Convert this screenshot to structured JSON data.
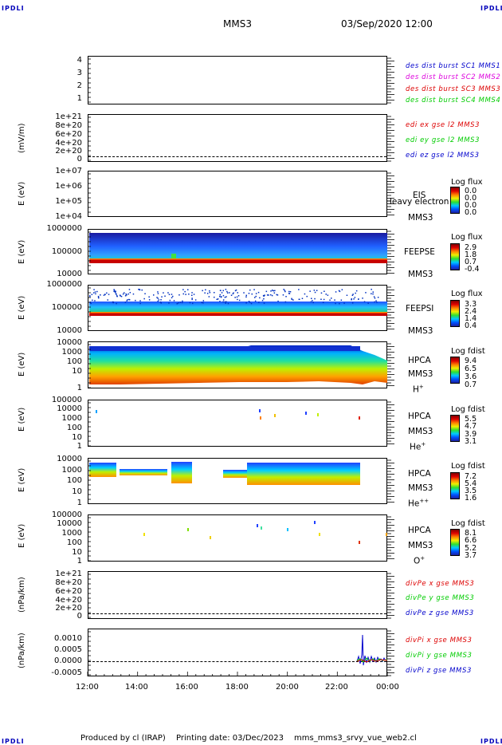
{
  "corners": {
    "tl": "IPDLI",
    "tr": "IPDLI",
    "bl": "IPDLI",
    "br": "IPDLI"
  },
  "header": {
    "spacecraft": "MMS3",
    "datetime": "03/Sep/2020 12:00"
  },
  "panels": {
    "p1": {
      "ticks": [
        "4",
        "3",
        "2",
        "1"
      ],
      "legend": [
        "des dist burst SC1 MMS1",
        "des dist burst SC2 MMS2",
        "des dist burst SC3 MMS3",
        "des dist burst SC4 MMS4"
      ]
    },
    "p2": {
      "ylabel": "(mV/m)",
      "ticks": [
        "1e+21",
        "8e+20",
        "6e+20",
        "4e+20",
        "2e+20",
        "0"
      ],
      "legend": [
        "edi ex gse l2 MMS3",
        "edi ey gse l2 MMS3",
        "edi ez gse l2 MMS3"
      ]
    },
    "p3": {
      "ylabel": "E (eV)",
      "ticks": [
        "1e+07",
        "1e+06",
        "1e+05",
        "1e+04"
      ],
      "inst": "EIS",
      "inst2": "MMS3",
      "overlay": "Heavy electron to",
      "cbar_title": "Log flux",
      "cbar": [
        "0.0",
        "0.0",
        "0.0",
        "0.0"
      ]
    },
    "p4": {
      "ylabel": "E (eV)",
      "ticks": [
        "1000000",
        "100000",
        "10000"
      ],
      "inst": "FEEPSE",
      "inst2": "MMS3",
      "cbar_title": "Log flux",
      "cbar": [
        "2.9",
        "1.8",
        "0.7",
        "-0.4"
      ]
    },
    "p5": {
      "ylabel": "E (eV)",
      "ticks": [
        "1000000",
        "100000",
        "10000"
      ],
      "inst": "FEEPSI",
      "inst2": "MMS3",
      "cbar_title": "Log flux",
      "cbar": [
        "3.3",
        "2.4",
        "1.4",
        "0.4"
      ]
    },
    "p6": {
      "ylabel": "E (eV)",
      "ticks": [
        "10000",
        "1000",
        "100",
        "10",
        "1"
      ],
      "inst": "HPCA",
      "inst2": "MMS3",
      "species": "H",
      "sup": "+",
      "cbar_title": "Log fdist",
      "cbar": [
        "9.4",
        "6.5",
        "3.6",
        "0.7"
      ]
    },
    "p7": {
      "ylabel": "E (eV)",
      "ticks": [
        "100000",
        "10000",
        "1000",
        "100",
        "10",
        "1"
      ],
      "inst": "HPCA",
      "inst2": "MMS3",
      "species": "He",
      "sup": "+",
      "cbar_title": "Log fdist",
      "cbar": [
        "5.5",
        "4.7",
        "3.9",
        "3.1"
      ]
    },
    "p8": {
      "ylabel": "E (eV)",
      "ticks": [
        "10000",
        "1000",
        "100",
        "10",
        "1"
      ],
      "inst": "HPCA",
      "inst2": "MMS3",
      "species": "He",
      "sup": "++",
      "cbar_title": "Log fdist",
      "cbar": [
        "7.2",
        "5.4",
        "3.5",
        "1.6"
      ]
    },
    "p9": {
      "ylabel": "E (eV)",
      "ticks": [
        "100000",
        "10000",
        "1000",
        "100",
        "10",
        "1"
      ],
      "inst": "HPCA",
      "inst2": "MMS3",
      "species": "O",
      "sup": "+",
      "cbar_title": "Log fdist",
      "cbar": [
        "8.1",
        "6.6",
        "5.2",
        "3.7"
      ]
    },
    "p10": {
      "ylabel": "(nPa/km)",
      "ticks": [
        "1e+21",
        "8e+20",
        "6e+20",
        "4e+20",
        "2e+20",
        "0"
      ],
      "legend": [
        "divPe x gse MMS3",
        "divPe y gse MMS3",
        "divPe z gse MMS3"
      ]
    },
    "p11": {
      "ylabel": "(nPa/km)",
      "ticks": [
        "0.0010",
        "0.0005",
        "0.0000",
        "-0.0005"
      ],
      "legend": [
        "divPi x gse MMS3",
        "divPi y gse MMS3",
        "divPi z gse MMS3"
      ]
    }
  },
  "xaxis": {
    "ticks": [
      "12:00",
      "14:00",
      "16:00",
      "18:00",
      "20:00",
      "22:00",
      "00:00"
    ]
  },
  "footer": {
    "produced": "Produced by cl (IRAP)",
    "printing": "Printing date: 03/Dec/2023",
    "script": "mms_mms3_srvy_vue_web2.cl"
  },
  "colors": {
    "blue": "#0000cc",
    "magenta": "#dd00dd",
    "red": "#dd0000",
    "green": "#00cc00"
  },
  "chart_data": {
    "type": "heatmap",
    "x": [
      "12:00",
      "14:00",
      "16:00",
      "18:00",
      "20:00",
      "22:00",
      "00:00"
    ],
    "divPi_z_spike": {
      "time": "22:45",
      "value": 0.0012
    }
  }
}
